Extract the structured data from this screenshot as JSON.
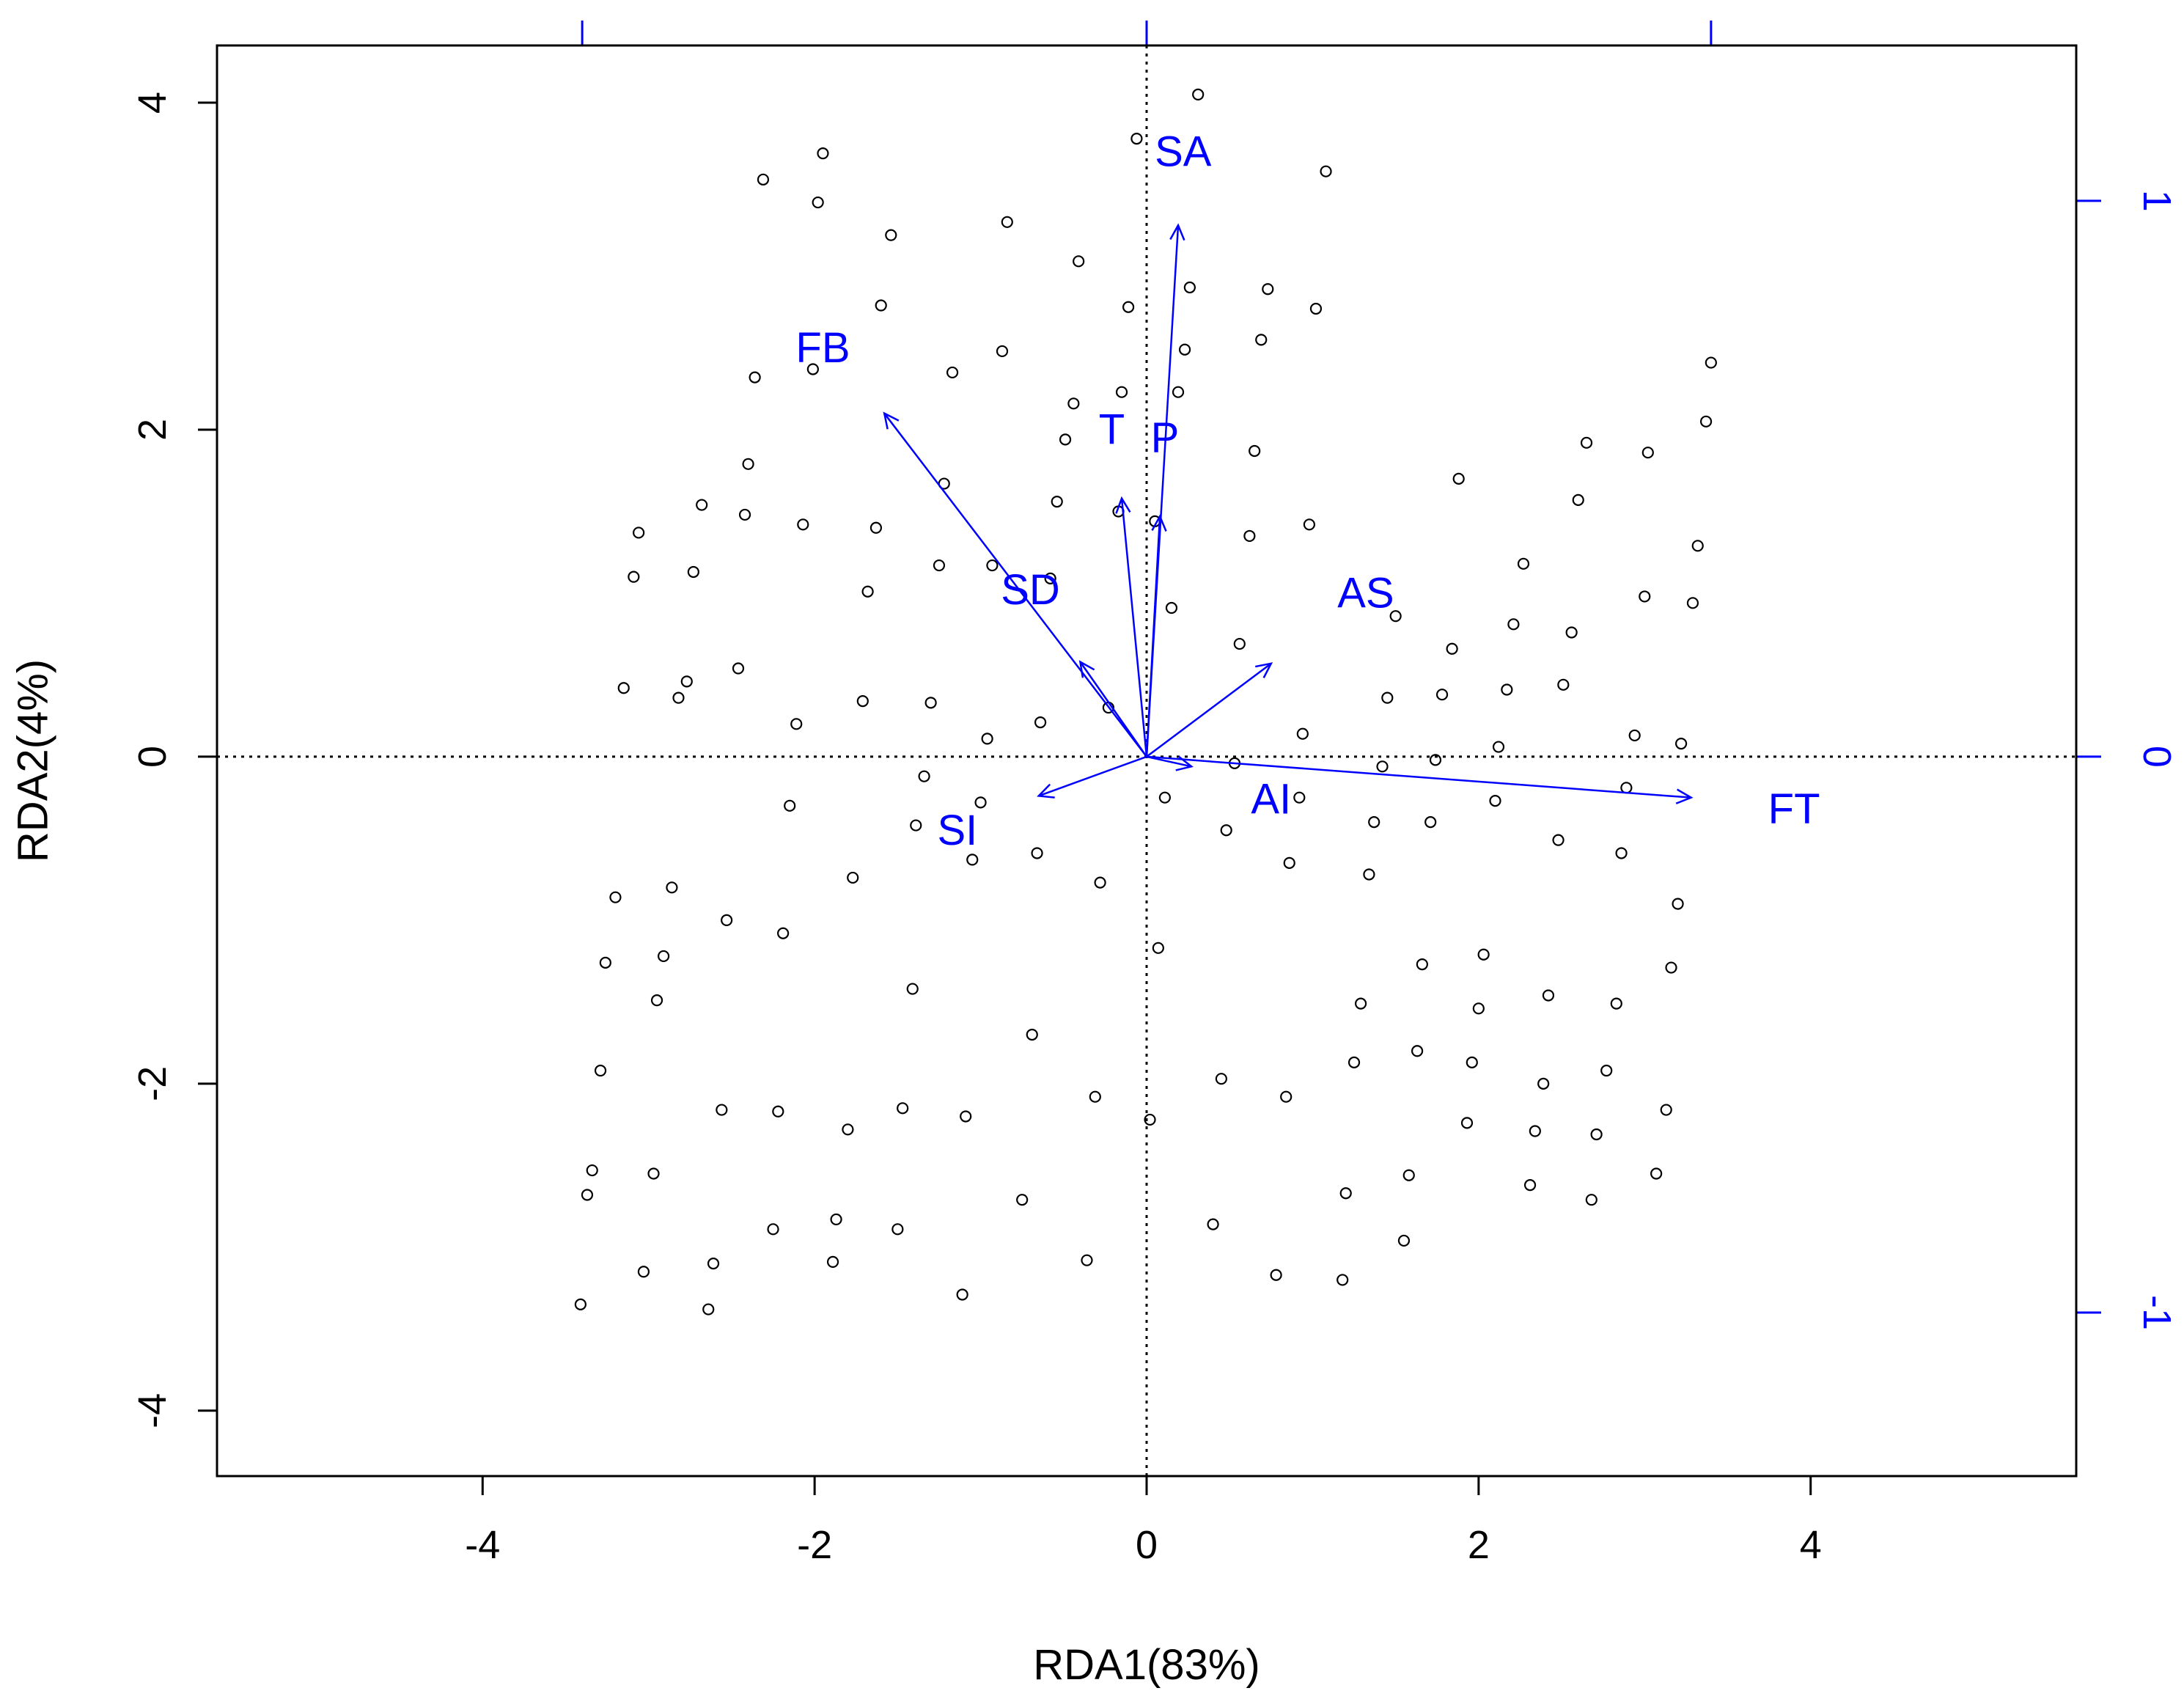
{
  "colors": {
    "points": "#000000",
    "arrows": "#0000ff",
    "secondary_axis": "#0000ff",
    "frame": "#000000"
  },
  "chart_data": {
    "type": "scatter",
    "subtype": "rda-biplot",
    "xlabel": "RDA1(83%)",
    "ylabel": "RDA2(4%)",
    "xlim": [
      -5.6,
      5.6
    ],
    "ylim": [
      -4.4,
      4.35
    ],
    "x_ticks": [
      -4,
      -2,
      0,
      2,
      4
    ],
    "y_ticks": [
      -4,
      -2,
      0,
      2,
      4
    ],
    "x_tick_labels": [
      "-4",
      "-2",
      "0",
      "2",
      "4"
    ],
    "y_tick_labels": [
      "-4",
      "-2",
      "0",
      "2",
      "4"
    ],
    "secondary_axes": {
      "top_ticks": [
        -1,
        0,
        1
      ],
      "right_ticks": [
        -1,
        0,
        1
      ],
      "right_tick_labels": [
        "-1",
        "0",
        "1"
      ],
      "scale_ratio": 3.4
    },
    "reference_lines": {
      "x": 0,
      "y": 0,
      "style": "dotted"
    },
    "grid": false,
    "legend": "none",
    "arrows": [
      {
        "label": "SA",
        "x": 0.19,
        "y": 3.25,
        "label_x": 0.22,
        "label_y": 3.7
      },
      {
        "label": "FB",
        "x": -1.58,
        "y": 2.1,
        "label_x": -1.95,
        "label_y": 2.5
      },
      {
        "label": "T",
        "x": -0.15,
        "y": 1.58,
        "label_x": -0.21,
        "label_y": 2.0
      },
      {
        "label": "P",
        "x": 0.08,
        "y": 1.47,
        "label_x": 0.11,
        "label_y": 1.95
      },
      {
        "label": "SD",
        "x": -0.4,
        "y": 0.58,
        "label_x": -0.7,
        "label_y": 1.02
      },
      {
        "label": "AS",
        "x": 0.75,
        "y": 0.57,
        "label_x": 1.32,
        "label_y": 1.0
      },
      {
        "label": "AI",
        "x": 0.27,
        "y": -0.06,
        "label_x": 0.75,
        "label_y": -0.26
      },
      {
        "label": "FT",
        "x": 3.28,
        "y": -0.25,
        "label_x": 3.9,
        "label_y": -0.32
      },
      {
        "label": "SI",
        "x": -0.65,
        "y": -0.24,
        "label_x": -1.14,
        "label_y": -0.45
      }
    ],
    "points": [
      [
        0.31,
        4.05
      ],
      [
        -0.06,
        3.78
      ],
      [
        1.08,
        3.58
      ],
      [
        -1.95,
        3.69
      ],
      [
        -2.31,
        3.53
      ],
      [
        -1.98,
        3.39
      ],
      [
        -1.54,
        3.19
      ],
      [
        -0.84,
        3.27
      ],
      [
        -0.41,
        3.03
      ],
      [
        0.26,
        2.87
      ],
      [
        0.73,
        2.86
      ],
      [
        1.02,
        2.74
      ],
      [
        -1.6,
        2.76
      ],
      [
        -0.11,
        2.75
      ],
      [
        -0.87,
        2.48
      ],
      [
        0.23,
        2.49
      ],
      [
        0.69,
        2.55
      ],
      [
        -2.01,
        2.37
      ],
      [
        -1.17,
        2.35
      ],
      [
        -2.36,
        2.32
      ],
      [
        -0.15,
        2.23
      ],
      [
        0.19,
        2.23
      ],
      [
        3.4,
        2.41
      ],
      [
        -0.44,
        2.16
      ],
      [
        3.37,
        2.05
      ],
      [
        -0.49,
        1.94
      ],
      [
        2.65,
        1.92
      ],
      [
        3.02,
        1.86
      ],
      [
        0.65,
        1.87
      ],
      [
        -2.4,
        1.79
      ],
      [
        1.88,
        1.7
      ],
      [
        -1.22,
        1.67
      ],
      [
        2.6,
        1.57
      ],
      [
        -0.54,
        1.56
      ],
      [
        -2.68,
        1.54
      ],
      [
        -2.42,
        1.48
      ],
      [
        -0.17,
        1.5
      ],
      [
        0.05,
        1.44
      ],
      [
        -2.07,
        1.42
      ],
      [
        -1.63,
        1.4
      ],
      [
        -3.06,
        1.37
      ],
      [
        0.98,
        1.42
      ],
      [
        0.62,
        1.35
      ],
      [
        3.32,
        1.29
      ],
      [
        2.27,
        1.18
      ],
      [
        -1.25,
        1.17
      ],
      [
        -0.93,
        1.17
      ],
      [
        -2.73,
        1.13
      ],
      [
        -3.09,
        1.1
      ],
      [
        -0.58,
        1.09
      ],
      [
        3.0,
        0.98
      ],
      [
        3.29,
        0.94
      ],
      [
        -1.68,
        1.01
      ],
      [
        0.15,
        0.91
      ],
      [
        1.5,
        0.86
      ],
      [
        2.21,
        0.81
      ],
      [
        2.56,
        0.76
      ],
      [
        0.56,
        0.69
      ],
      [
        1.84,
        0.66
      ],
      [
        -2.46,
        0.54
      ],
      [
        -2.77,
        0.46
      ],
      [
        2.51,
        0.44
      ],
      [
        -3.15,
        0.42
      ],
      [
        2.17,
        0.41
      ],
      [
        1.78,
        0.38
      ],
      [
        -2.82,
        0.36
      ],
      [
        1.45,
        0.36
      ],
      [
        -1.71,
        0.34
      ],
      [
        -1.3,
        0.33
      ],
      [
        -0.23,
        0.3
      ],
      [
        -0.64,
        0.21
      ],
      [
        -2.11,
        0.2
      ],
      [
        0.94,
        0.14
      ],
      [
        2.94,
        0.13
      ],
      [
        -0.96,
        0.11
      ],
      [
        3.22,
        0.08
      ],
      [
        2.12,
        0.06
      ],
      [
        1.74,
        -0.02
      ],
      [
        0.53,
        -0.04
      ],
      [
        1.42,
        -0.06
      ],
      [
        -1.34,
        -0.12
      ],
      [
        2.89,
        -0.19
      ],
      [
        0.11,
        -0.25
      ],
      [
        -1.0,
        -0.28
      ],
      [
        0.92,
        -0.25
      ],
      [
        2.1,
        -0.27
      ],
      [
        -2.15,
        -0.3
      ],
      [
        1.37,
        -0.4
      ],
      [
        1.71,
        -0.4
      ],
      [
        -1.39,
        -0.42
      ],
      [
        0.48,
        -0.45
      ],
      [
        2.48,
        -0.51
      ],
      [
        -1.05,
        -0.63
      ],
      [
        -0.66,
        -0.59
      ],
      [
        0.86,
        -0.65
      ],
      [
        2.86,
        -0.59
      ],
      [
        1.34,
        -0.72
      ],
      [
        -1.77,
        -0.74
      ],
      [
        -0.28,
        -0.77
      ],
      [
        -2.86,
        -0.8
      ],
      [
        -3.2,
        -0.86
      ],
      [
        3.2,
        -0.9
      ],
      [
        -2.53,
        -1.0
      ],
      [
        -2.19,
        -1.08
      ],
      [
        0.07,
        -1.17
      ],
      [
        2.03,
        -1.21
      ],
      [
        -2.91,
        -1.22
      ],
      [
        -3.26,
        -1.26
      ],
      [
        1.66,
        -1.27
      ],
      [
        3.16,
        -1.29
      ],
      [
        -1.41,
        -1.42
      ],
      [
        2.42,
        -1.46
      ],
      [
        -2.95,
        -1.49
      ],
      [
        1.29,
        -1.51
      ],
      [
        2.0,
        -1.54
      ],
      [
        2.83,
        -1.51
      ],
      [
        -0.69,
        -1.7
      ],
      [
        1.63,
        -1.8
      ],
      [
        1.25,
        -1.87
      ],
      [
        1.96,
        -1.87
      ],
      [
        -3.29,
        -1.92
      ],
      [
        2.77,
        -1.92
      ],
      [
        0.45,
        -1.97
      ],
      [
        2.39,
        -2.0
      ],
      [
        0.84,
        -2.08
      ],
      [
        -0.31,
        -2.08
      ],
      [
        -2.56,
        -2.16
      ],
      [
        -2.22,
        -2.17
      ],
      [
        -1.47,
        -2.15
      ],
      [
        3.13,
        -2.16
      ],
      [
        -1.09,
        -2.2
      ],
      [
        0.02,
        -2.22
      ],
      [
        1.93,
        -2.24
      ],
      [
        -1.8,
        -2.28
      ],
      [
        2.34,
        -2.29
      ],
      [
        2.71,
        -2.31
      ],
      [
        -3.34,
        -2.53
      ],
      [
        -2.97,
        -2.55
      ],
      [
        1.58,
        -2.56
      ],
      [
        3.07,
        -2.55
      ],
      [
        2.31,
        -2.62
      ],
      [
        1.2,
        -2.67
      ],
      [
        -3.37,
        -2.68
      ],
      [
        2.68,
        -2.71
      ],
      [
        -0.75,
        -2.71
      ],
      [
        -1.87,
        -2.83
      ],
      [
        0.4,
        -2.86
      ],
      [
        -2.25,
        -2.89
      ],
      [
        -1.5,
        -2.89
      ],
      [
        1.55,
        -2.96
      ],
      [
        -0.36,
        -3.08
      ],
      [
        -1.89,
        -3.09
      ],
      [
        -2.61,
        -3.1
      ],
      [
        -3.03,
        -3.15
      ],
      [
        0.78,
        -3.17
      ],
      [
        1.18,
        -3.2
      ],
      [
        -1.11,
        -3.29
      ],
      [
        -3.41,
        -3.35
      ],
      [
        -2.64,
        -3.38
      ]
    ]
  }
}
